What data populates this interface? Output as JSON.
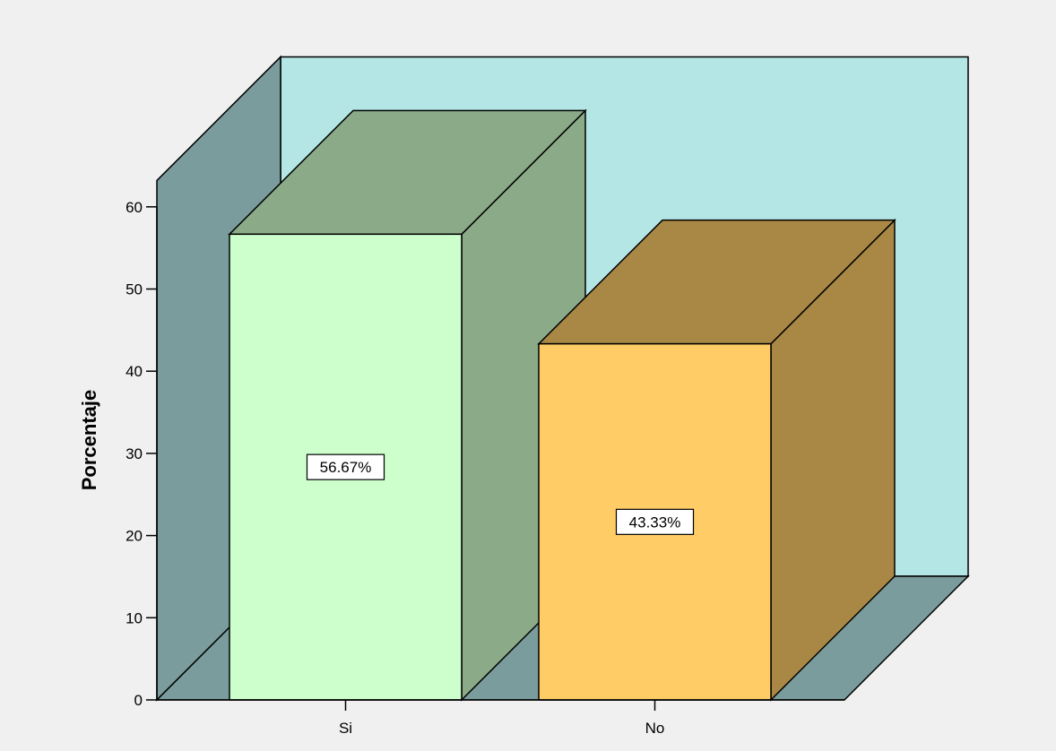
{
  "chart_data": {
    "type": "bar",
    "style": "3d",
    "categories": [
      "Si",
      "No"
    ],
    "values": [
      56.67,
      43.33
    ],
    "data_labels": [
      "56.67%",
      "43.33%"
    ],
    "ylabel": "Porcentaje",
    "xlabel": "",
    "ylim": [
      0,
      60
    ],
    "yticks": [
      0,
      10,
      20,
      30,
      40,
      50,
      60
    ],
    "grid": false,
    "colors": {
      "bar_front": [
        "#ccffcc",
        "#ffcc66"
      ],
      "bar_side": [
        "#8aaa88",
        "#a88844"
      ],
      "back_wall": "#b4e6e6",
      "side_wall": "#7a9c9c",
      "floor": "#7a9c9c",
      "background": "#f0f0f0"
    }
  }
}
